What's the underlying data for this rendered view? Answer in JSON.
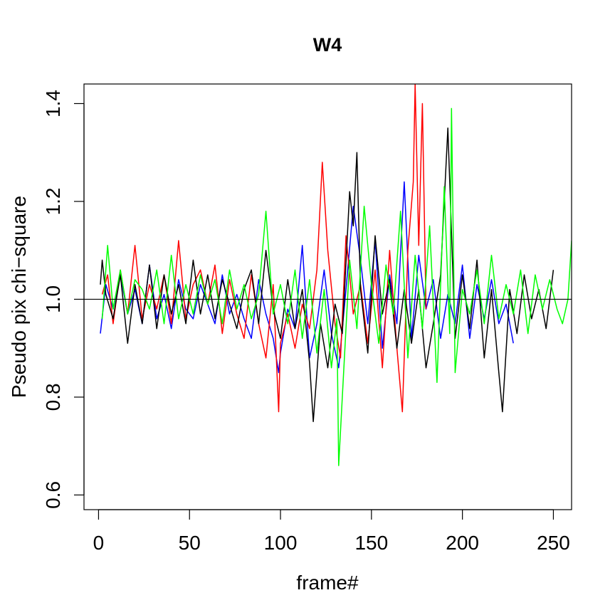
{
  "chart_data": {
    "type": "line",
    "title": "W4",
    "xlabel": "frame#",
    "ylabel": "Pseudo pix chi−square",
    "xlim": [
      -8,
      260
    ],
    "ylim": [
      0.57,
      1.44
    ],
    "xticks": [
      0,
      50,
      100,
      150,
      200,
      250
    ],
    "yticks": [
      0.6,
      0.8,
      1.0,
      1.2,
      1.4
    ],
    "xtick_labels": [
      "0",
      "50",
      "100",
      "150",
      "200",
      "250"
    ],
    "ytick_labels": [
      "0.6",
      "0.8",
      "1.0",
      "1.2",
      "1.4"
    ],
    "reference_line": 1.0,
    "grid": false,
    "legend": "none",
    "series": [
      {
        "color": "#0000ff",
        "x": [
          1,
          4,
          8,
          12,
          16,
          20,
          24,
          28,
          32,
          36,
          40,
          44,
          48,
          52,
          56,
          60,
          64,
          68,
          72,
          76,
          80,
          84,
          88,
          92,
          96,
          99,
          100,
          104,
          108,
          112,
          116,
          120,
          124,
          128,
          132,
          136,
          140,
          144,
          148,
          152,
          156,
          160,
          164,
          168,
          172,
          176,
          180,
          184,
          188,
          192,
          196,
          200,
          204,
          208,
          212,
          216,
          220,
          224,
          228
        ],
        "values": [
          0.93,
          1.03,
          0.98,
          1.05,
          0.97,
          1.02,
          0.95,
          1.07,
          0.96,
          1.01,
          0.94,
          1.04,
          0.98,
          0.96,
          1.03,
          0.99,
          0.95,
          1.05,
          0.97,
          1.01,
          0.96,
          0.92,
          1.04,
          0.97,
          0.92,
          0.85,
          0.89,
          0.98,
          0.94,
          1.11,
          0.88,
          0.95,
          1.06,
          0.93,
          0.86,
          1.02,
          1.19,
          1.08,
          0.95,
          1.12,
          0.9,
          1.05,
          0.95,
          1.24,
          0.92,
          1.09,
          0.98,
          1.04,
          0.92,
          1.01,
          0.95,
          1.07,
          0.92,
          1.03,
          0.96,
          1.04,
          0.95,
          0.99,
          0.91
        ]
      },
      {
        "color": "#ff0000",
        "x": [
          2,
          5,
          8,
          12,
          16,
          20,
          24,
          28,
          32,
          36,
          40,
          44,
          48,
          52,
          56,
          60,
          64,
          68,
          72,
          76,
          80,
          84,
          88,
          92,
          96,
          99,
          100,
          104,
          108,
          112,
          116,
          120,
          123,
          126,
          130,
          133,
          136,
          140,
          144,
          148,
          152,
          156,
          160,
          164,
          167,
          170,
          173,
          174,
          176,
          178,
          180
        ],
        "values": [
          1.01,
          1.05,
          0.95,
          1.06,
          0.97,
          1.11,
          0.96,
          1.03,
          0.98,
          1.05,
          0.95,
          1.12,
          0.96,
          1.03,
          1.06,
          0.99,
          1.07,
          0.93,
          1.04,
          0.97,
          0.92,
          1.05,
          0.95,
          0.88,
          1.03,
          0.77,
          0.91,
          0.97,
          0.9,
          0.99,
          0.94,
          1.06,
          1.28,
          1.1,
          0.95,
          0.88,
          1.13,
          0.97,
          1.03,
          0.91,
          1.06,
          0.86,
          1.1,
          0.9,
          0.77,
          1.1,
          1.24,
          1.44,
          1.11,
          1.4,
          0.98
        ]
      },
      {
        "color": "#000000",
        "x": [
          1,
          2,
          4,
          8,
          12,
          16,
          20,
          24,
          28,
          32,
          36,
          40,
          44,
          48,
          52,
          56,
          60,
          64,
          68,
          72,
          76,
          80,
          84,
          88,
          92,
          96,
          100,
          104,
          108,
          112,
          116,
          118,
          122,
          126,
          130,
          134,
          138,
          140,
          142,
          144,
          148,
          152,
          156,
          160,
          164,
          168,
          172,
          176,
          180,
          184,
          188,
          192,
          196,
          200,
          204,
          208,
          212,
          216,
          220,
          222,
          226,
          230,
          234,
          238,
          242,
          246,
          250
        ],
        "values": [
          1.03,
          1.08,
          1.01,
          0.96,
          1.05,
          0.91,
          1.03,
          0.95,
          1.07,
          0.94,
          1.05,
          0.97,
          1.03,
          0.95,
          1.08,
          0.97,
          1.05,
          0.96,
          1.04,
          0.99,
          0.94,
          1.02,
          1.06,
          0.95,
          1.1,
          0.98,
          0.92,
          1.04,
          0.94,
          1.02,
          0.87,
          0.75,
          0.95,
          0.86,
          0.99,
          0.93,
          1.22,
          1.15,
          1.3,
          1.02,
          0.89,
          1.13,
          0.97,
          1.04,
          0.9,
          1.02,
          0.91,
          1.02,
          0.86,
          0.95,
          1.05,
          1.35,
          0.92,
          1.05,
          0.94,
          1.08,
          0.88,
          1.02,
          0.85,
          0.77,
          1.02,
          0.93,
          1.05,
          0.96,
          1.02,
          0.94,
          1.06
        ]
      },
      {
        "color": "#00ff00",
        "x": [
          2,
          5,
          8,
          12,
          16,
          20,
          24,
          28,
          32,
          36,
          40,
          44,
          48,
          52,
          56,
          60,
          64,
          68,
          72,
          76,
          80,
          84,
          88,
          92,
          96,
          100,
          104,
          108,
          112,
          116,
          120,
          124,
          128,
          131,
          132,
          134,
          138,
          142,
          146,
          150,
          154,
          158,
          162,
          166,
          170,
          174,
          178,
          182,
          186,
          190,
          193,
          194,
          196,
          200,
          204,
          208,
          212,
          216,
          220,
          224,
          228,
          232,
          236,
          240,
          244,
          248,
          252,
          255,
          258,
          260
        ],
        "values": [
          0.96,
          1.11,
          0.98,
          1.06,
          0.97,
          1.04,
          1.02,
          0.98,
          1.06,
          0.95,
          1.09,
          0.96,
          1.03,
          0.97,
          1.05,
          0.99,
          1.04,
          0.95,
          1.06,
          0.98,
          1.03,
          0.96,
          1.01,
          1.18,
          0.97,
          1.03,
          0.95,
          1.06,
          0.92,
          1.04,
          0.89,
          1.02,
          0.86,
          0.96,
          0.66,
          0.8,
          1.08,
          0.94,
          1.19,
          1.03,
          0.91,
          1.07,
          0.97,
          1.18,
          0.88,
          1.09,
          0.94,
          1.15,
          0.83,
          1.23,
          0.93,
          1.39,
          0.85,
          1.02,
          0.97,
          1.06,
          0.95,
          1.09,
          0.96,
          1.03,
          0.97,
          1.06,
          0.93,
          1.05,
          0.98,
          1.04,
          0.98,
          0.95,
          1.0,
          1.12
        ]
      }
    ]
  }
}
